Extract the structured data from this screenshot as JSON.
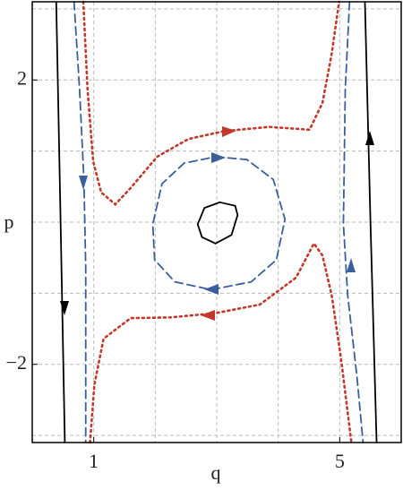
{
  "chart_data": {
    "type": "line",
    "xlabel": "q",
    "ylabel": "p",
    "xlim": [
      0,
      6
    ],
    "ylim": [
      -3.1,
      3.1
    ],
    "xticks": [
      1,
      5
    ],
    "yticks": [
      {
        "value": -2,
        "label": "−2"
      },
      2
    ],
    "xgrid": [
      1,
      2,
      3,
      4,
      5
    ],
    "ygrid": [
      -3,
      -2,
      -1,
      0,
      1,
      2,
      3
    ],
    "grid": true,
    "series": [
      {
        "color": "#000000",
        "style": "solid",
        "x": [
          0.39,
          0.45,
          0.53
        ],
        "y": [
          3.1,
          0.5,
          -3.1
        ]
      },
      {
        "color": "#000000",
        "style": "solid",
        "x": [
          5.41,
          5.5,
          5.6
        ],
        "y": [
          3.1,
          0.0,
          -3.1
        ]
      },
      {
        "color": "#000000",
        "style": "solid",
        "x": [
          3.34,
          3.24,
          2.98,
          2.76,
          2.69,
          2.8,
          3.05,
          3.3,
          3.34
        ],
        "y": [
          0.1,
          -0.18,
          -0.3,
          -0.21,
          -0.03,
          0.2,
          0.28,
          0.23,
          0.1
        ]
      },
      {
        "color": "#3a5f9c",
        "style": "dashed",
        "x": [
          0.68,
          0.77,
          0.84,
          0.87,
          0.87
        ],
        "y": [
          3.1,
          1.86,
          0.6,
          -0.65,
          -3.1
        ]
      },
      {
        "color": "#3a5f9c",
        "style": "dashed",
        "x": [
          5.16,
          5.09,
          5.06,
          5.13,
          5.28,
          5.38
        ],
        "y": [
          3.1,
          1.86,
          -0.03,
          -1.03,
          -2.17,
          -3.1
        ]
      },
      {
        "color": "#3a5f9c",
        "style": "dashed",
        "x": [
          2.98,
          3.49,
          3.92,
          4.11,
          3.97,
          3.56,
          2.91,
          2.32,
          1.99,
          1.96,
          2.11,
          2.47,
          2.98
        ],
        "y": [
          0.92,
          0.88,
          0.6,
          0.04,
          -0.53,
          -0.84,
          -0.95,
          -0.84,
          -0.53,
          -0.03,
          0.54,
          0.83,
          0.92
        ]
      },
      {
        "color": "#c0392b",
        "style": "dotted",
        "x": [
          0.83,
          0.9,
          0.99,
          1.12,
          1.35,
          1.6,
          2.03,
          2.54,
          3.12,
          3.85,
          4.51,
          4.72,
          4.87,
          4.99
        ],
        "y": [
          3.1,
          1.86,
          0.86,
          0.42,
          0.25,
          0.48,
          0.92,
          1.17,
          1.28,
          1.34,
          1.3,
          1.68,
          2.37,
          3.1
        ]
      },
      {
        "color": "#c0392b",
        "style": "dotted",
        "x": [
          0.94,
          1.01,
          1.16,
          1.6,
          2.25,
          2.98,
          3.7,
          4.29,
          4.58,
          4.72,
          4.87,
          5.02,
          5.19
        ],
        "y": [
          -3.1,
          -2.29,
          -1.64,
          -1.35,
          -1.34,
          -1.28,
          -1.16,
          -0.78,
          -0.3,
          -0.47,
          -1.03,
          -1.91,
          -3.1
        ]
      }
    ]
  }
}
